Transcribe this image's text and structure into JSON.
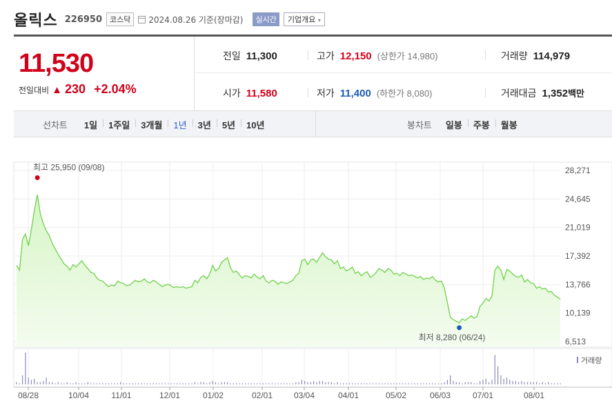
{
  "header": {
    "name": "올릭스",
    "code": "226950",
    "market": "코스닥",
    "date": "2024.08.26 기준(장마감)",
    "realtime": "실시간",
    "company_info": "기업개요",
    "company_info_caret": "▾"
  },
  "price": {
    "current": "11,530",
    "change_label": "전일대비",
    "change_arrow": "▲",
    "change_amount": "230",
    "change_pct": "+2.04%"
  },
  "stats": {
    "prev_label": "전일",
    "prev": "11,300",
    "high_label": "고가",
    "high": "12,150",
    "upper_limit": "(상한가 14,980)",
    "volume_label": "거래량",
    "volume": "114,979",
    "open_label": "시가",
    "open": "11,580",
    "low_label": "저가",
    "low": "11,400",
    "lower_limit": "(하한가 8,080)",
    "value_label": "거래대금",
    "value": "1,352",
    "value_unit": "백만"
  },
  "toolbar": {
    "line_label": "선차트",
    "periods": [
      "1일",
      "1주일",
      "3개월",
      "1년",
      "3년",
      "5년",
      "10년"
    ],
    "selected_period": "1년",
    "candle_label": "봉차트",
    "candles": [
      "일봉",
      "주봉",
      "월봉"
    ]
  },
  "colors": {
    "line": "#6fd04a",
    "fill_top": "#d6f5c6",
    "fill_bottom": "#f4fcef",
    "up": "#d0021b",
    "down": "#1a5bb5",
    "volume": "#8a88b8"
  },
  "chart_data": {
    "type": "area",
    "title": "",
    "y_ticks": [
      "28,271",
      "24,645",
      "21,019",
      "17,392",
      "13,766",
      "10,139",
      "6,513"
    ],
    "ylim": [
      6513,
      28271
    ],
    "x_ticks": [
      "08/28",
      "10/04",
      "11/01",
      "12/01",
      "01/02",
      "02/01",
      "03/04",
      "04/01",
      "05/02",
      "06/03",
      "07/01",
      "08/01"
    ],
    "max_label": "최고 25,950 (09/08)",
    "max_value": 25950,
    "min_label": "최저 8,280 (06/24)",
    "min_value": 8280,
    "volume_label": "거래량",
    "price_series": [
      16200,
      15600,
      19500,
      20200,
      18700,
      20800,
      23200,
      25200,
      22800,
      21500,
      20600,
      20000,
      19000,
      18300,
      17600,
      17000,
      16400,
      16100,
      15600,
      16300,
      16000,
      16400,
      16800,
      16200,
      15800,
      15300,
      15200,
      14600,
      14300,
      14200,
      13800,
      13500,
      13700,
      13600,
      14200,
      14000,
      13900,
      13600,
      13700,
      14000,
      14300,
      14100,
      14200,
      14500,
      14100,
      14000,
      14300,
      14100,
      13800,
      13500,
      13700,
      13800,
      13600,
      13400,
      13500,
      13400,
      13500,
      13300,
      13400,
      13500,
      14300,
      14000,
      14700,
      14900,
      14500,
      15100,
      16200,
      15500,
      15800,
      16600,
      16900,
      17200,
      15900,
      15300,
      15500,
      15000,
      14600,
      14900,
      14800,
      14600,
      15100,
      14700,
      14500,
      14900,
      14200,
      14000,
      14300,
      14200,
      13800,
      14100,
      14000,
      13900,
      14100,
      14300,
      14900,
      15200,
      16800,
      17000,
      16300,
      16900,
      17000,
      16600,
      17200,
      17800,
      17300,
      17000,
      16900,
      16400,
      16800,
      15800,
      16000,
      15500,
      15700,
      16000,
      15200,
      15400,
      14900,
      15200,
      15400,
      14700,
      14900,
      15300,
      15800,
      15600,
      15300,
      15800,
      15600,
      15100,
      15200,
      14900,
      15300,
      15100,
      14900,
      15000,
      14800,
      14600,
      14800,
      14400,
      14600,
      14500,
      14800,
      14300,
      14100,
      14200,
      13300,
      11500,
      9600,
      9300,
      9100,
      8900,
      9400,
      9200,
      9500,
      9800,
      9500,
      9700,
      11000,
      11400,
      12000,
      11700,
      12300,
      15600,
      16100,
      15600,
      14400,
      15700,
      15500,
      15100,
      14800,
      14700,
      15000,
      14100,
      14400,
      14000,
      13900,
      13300,
      13500,
      13200,
      13300,
      12800,
      12900,
      12400,
      12200,
      11900
    ],
    "volume_series": [
      2,
      1,
      8,
      28,
      6,
      4,
      5,
      2,
      2,
      3,
      6,
      2,
      2,
      1,
      2,
      1,
      1,
      2,
      1,
      1,
      2,
      1,
      1,
      1,
      2,
      1,
      1,
      1,
      1,
      1,
      1,
      1,
      1,
      1,
      1,
      2,
      1,
      1,
      1,
      1,
      1,
      1,
      1,
      1,
      1,
      1,
      1,
      1,
      1,
      1,
      1,
      1,
      1,
      1,
      1,
      1,
      1,
      1,
      1,
      1,
      2,
      1,
      2,
      2,
      1,
      2,
      3,
      2,
      1,
      2,
      2,
      2,
      1,
      1,
      1,
      1,
      1,
      1,
      1,
      1,
      1,
      1,
      1,
      1,
      1,
      1,
      1,
      1,
      1,
      1,
      1,
      1,
      1,
      1,
      2,
      2,
      4,
      3,
      2,
      2,
      3,
      2,
      3,
      3,
      2,
      2,
      2,
      1,
      2,
      1,
      1,
      1,
      1,
      1,
      1,
      1,
      1,
      1,
      1,
      1,
      1,
      1,
      1,
      1,
      1,
      1,
      1,
      1,
      1,
      1,
      1,
      1,
      1,
      1,
      1,
      1,
      1,
      1,
      1,
      1,
      1,
      1,
      1,
      1,
      2,
      4,
      8,
      3,
      2,
      2,
      1,
      2,
      2,
      2,
      1,
      1,
      3,
      4,
      5,
      2,
      4,
      26,
      16,
      8,
      5,
      6,
      4,
      3,
      3,
      2,
      3,
      2,
      2,
      2,
      2,
      2,
      1,
      2,
      1,
      2,
      1,
      1,
      1,
      1
    ]
  }
}
